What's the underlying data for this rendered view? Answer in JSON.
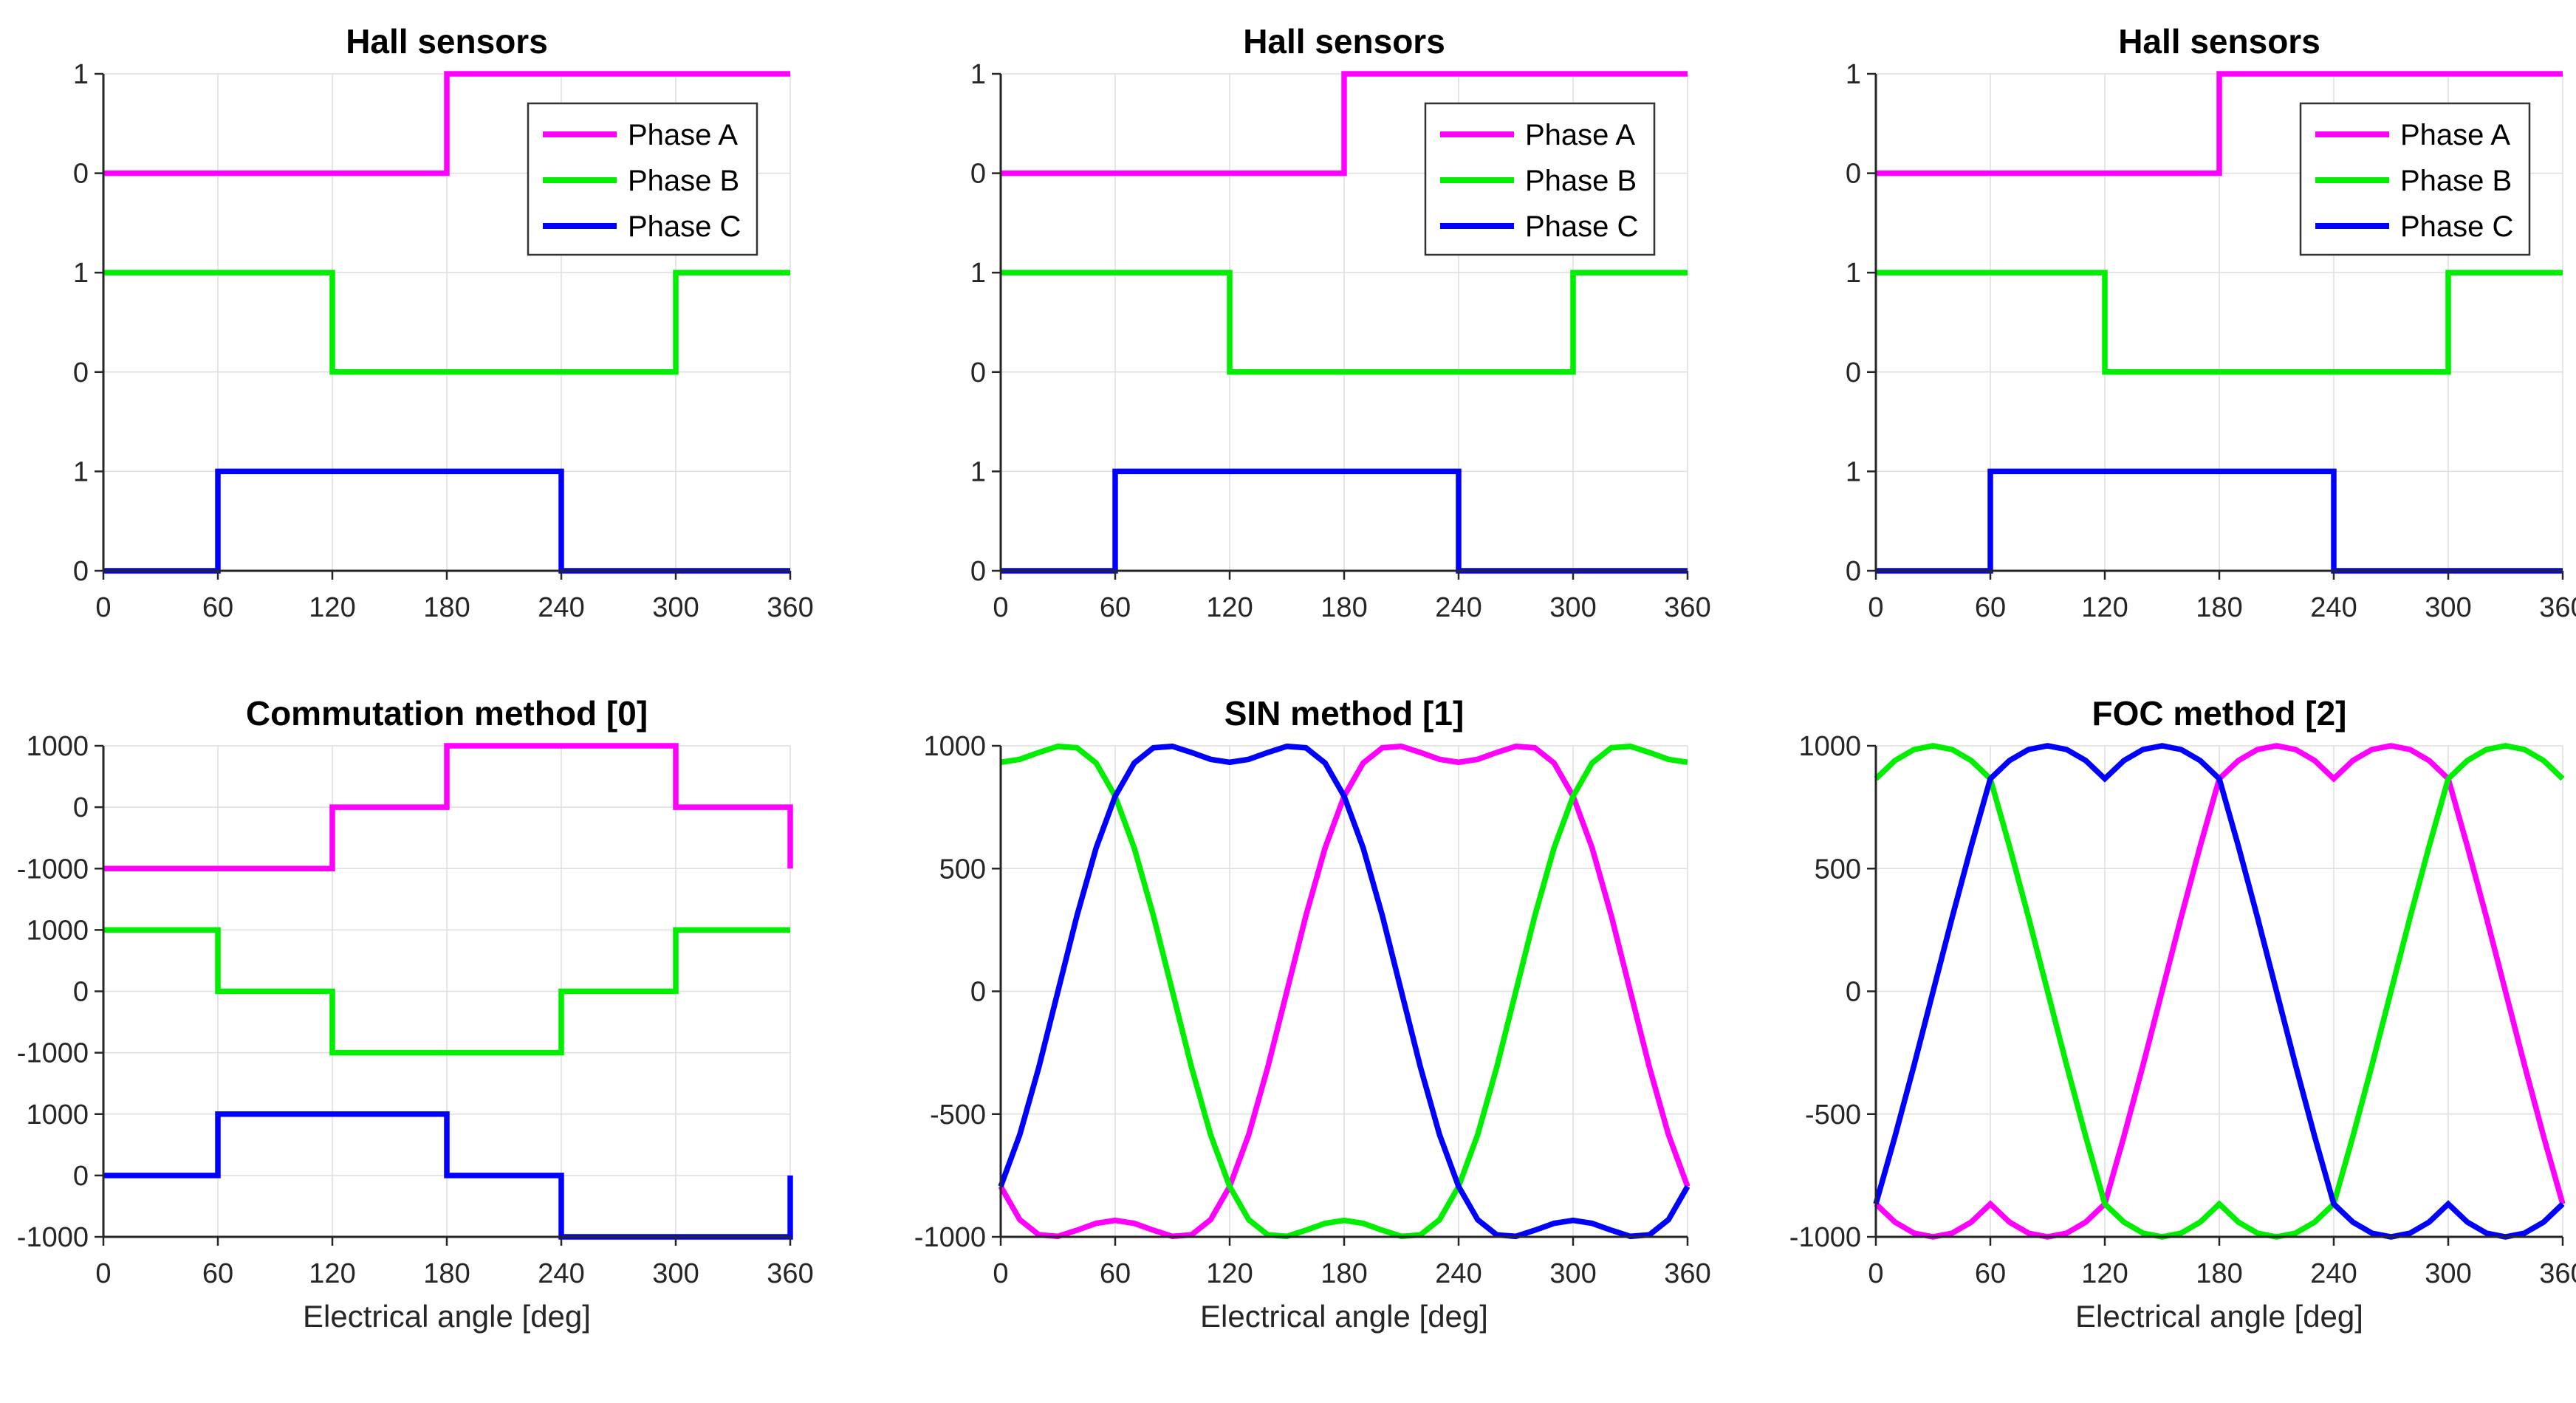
{
  "colors": {
    "phase_a": "#ff00ff",
    "phase_b": "#00ee00",
    "phase_c": "#0000ff",
    "axis": "#262626",
    "grid": "#dedede",
    "label": "#262626",
    "title": "#000000",
    "legend_border": "#333333",
    "background": "#ffffff"
  },
  "legend": {
    "items": [
      {
        "label": "Phase A",
        "color": "phase_a"
      },
      {
        "label": "Phase B",
        "color": "phase_b"
      },
      {
        "label": "Phase C",
        "color": "phase_c"
      }
    ]
  },
  "x_axis": {
    "label": "Electrical angle [deg]",
    "range": [
      0,
      360
    ],
    "tick_values": [
      0,
      60,
      120,
      180,
      240,
      300,
      360
    ],
    "tick_labels": [
      "0",
      "60",
      "120",
      "180",
      "240",
      "300",
      "360"
    ]
  },
  "hall_series": [
    {
      "name": "Phase A",
      "color": "phase_a",
      "y_offset": 4,
      "y_scale": 1,
      "points": [
        [
          0,
          0
        ],
        [
          180,
          0
        ],
        [
          180,
          1
        ],
        [
          360,
          1
        ]
      ]
    },
    {
      "name": "Phase B",
      "color": "phase_b",
      "y_offset": 2,
      "y_scale": 1,
      "points": [
        [
          0,
          1
        ],
        [
          120,
          1
        ],
        [
          120,
          0
        ],
        [
          300,
          0
        ],
        [
          300,
          1
        ],
        [
          360,
          1
        ]
      ]
    },
    {
      "name": "Phase C",
      "color": "phase_c",
      "y_offset": 0,
      "y_scale": 1,
      "points": [
        [
          0,
          0
        ],
        [
          60,
          0
        ],
        [
          60,
          1
        ],
        [
          240,
          1
        ],
        [
          240,
          0
        ],
        [
          360,
          0
        ]
      ]
    }
  ],
  "chart_data": [
    {
      "id": "hall-1",
      "type": "line",
      "title": "Hall sensors",
      "show_legend": true,
      "show_xlabel": false,
      "y_range": [
        0,
        5
      ],
      "y_ticks": [
        {
          "v": 5,
          "label": "1"
        },
        {
          "v": 4,
          "label": "0"
        },
        {
          "v": 3,
          "label": "1"
        },
        {
          "v": 2,
          "label": "0"
        },
        {
          "v": 1,
          "label": "1"
        },
        {
          "v": 0,
          "label": "0"
        }
      ],
      "series_ref": "hall_series"
    },
    {
      "id": "hall-2",
      "type": "line",
      "title": "Hall sensors",
      "show_legend": true,
      "show_xlabel": false,
      "y_range": [
        0,
        5
      ],
      "y_ticks": [
        {
          "v": 5,
          "label": "1"
        },
        {
          "v": 4,
          "label": "0"
        },
        {
          "v": 3,
          "label": "1"
        },
        {
          "v": 2,
          "label": "0"
        },
        {
          "v": 1,
          "label": "1"
        },
        {
          "v": 0,
          "label": "0"
        }
      ],
      "series_ref": "hall_series"
    },
    {
      "id": "hall-3",
      "type": "line",
      "title": "Hall sensors",
      "show_legend": true,
      "show_xlabel": false,
      "y_range": [
        0,
        5
      ],
      "y_ticks": [
        {
          "v": 5,
          "label": "1"
        },
        {
          "v": 4,
          "label": "0"
        },
        {
          "v": 3,
          "label": "1"
        },
        {
          "v": 2,
          "label": "0"
        },
        {
          "v": 1,
          "label": "1"
        },
        {
          "v": 0,
          "label": "0"
        }
      ],
      "series_ref": "hall_series"
    },
    {
      "id": "commutation",
      "type": "line",
      "title": "Commutation method [0]",
      "show_legend": false,
      "show_xlabel": true,
      "y_range": [
        0,
        8
      ],
      "y_ticks": [
        {
          "v": 8,
          "label": "1000"
        },
        {
          "v": 7,
          "label": "0"
        },
        {
          "v": 6,
          "label": "-1000"
        },
        {
          "v": 5,
          "label": "1000"
        },
        {
          "v": 4,
          "label": "0"
        },
        {
          "v": 3,
          "label": "-1000"
        },
        {
          "v": 2,
          "label": "1000"
        },
        {
          "v": 1,
          "label": "0"
        },
        {
          "v": 0,
          "label": "-1000"
        }
      ],
      "series": [
        {
          "name": "Phase A",
          "color": "phase_a",
          "y_offset": 7,
          "y_scale": 0.001,
          "points": [
            [
              0,
              -1000
            ],
            [
              120,
              -1000
            ],
            [
              120,
              0
            ],
            [
              180,
              0
            ],
            [
              180,
              1000
            ],
            [
              300,
              1000
            ],
            [
              300,
              0
            ],
            [
              360,
              0
            ],
            [
              360,
              -1000
            ]
          ]
        },
        {
          "name": "Phase B",
          "color": "phase_b",
          "y_offset": 4,
          "y_scale": 0.001,
          "points": [
            [
              0,
              1000
            ],
            [
              60,
              1000
            ],
            [
              60,
              0
            ],
            [
              120,
              0
            ],
            [
              120,
              -1000
            ],
            [
              240,
              -1000
            ],
            [
              240,
              0
            ],
            [
              300,
              0
            ],
            [
              300,
              1000
            ],
            [
              360,
              1000
            ]
          ]
        },
        {
          "name": "Phase C",
          "color": "phase_c",
          "y_offset": 1,
          "y_scale": 0.001,
          "points": [
            [
              0,
              0
            ],
            [
              60,
              0
            ],
            [
              60,
              1000
            ],
            [
              180,
              1000
            ],
            [
              180,
              0
            ],
            [
              240,
              0
            ],
            [
              240,
              -1000
            ],
            [
              360,
              -1000
            ],
            [
              360,
              0
            ]
          ]
        }
      ]
    },
    {
      "id": "sin-method",
      "type": "line",
      "title": "SIN method [1]",
      "show_legend": false,
      "show_xlabel": true,
      "y_range": [
        -1000,
        1000
      ],
      "y_ticks": [
        {
          "v": 1000,
          "label": "1000"
        },
        {
          "v": 500,
          "label": "500"
        },
        {
          "v": 0,
          "label": "0"
        },
        {
          "v": -500,
          "label": "-500"
        },
        {
          "v": -1000,
          "label": "-1000"
        }
      ],
      "series": [
        {
          "name": "Phase A",
          "color": "phase_a",
          "y_offset": 0,
          "y_scale": 1,
          "x_start": 0,
          "x_step": 10,
          "values": [
            -795,
            -930,
            -992,
            -998,
            -973,
            -945,
            -933,
            -945,
            -973,
            -998,
            -992,
            -930,
            -795,
            -584,
            -309,
            0,
            309,
            584,
            795,
            930,
            992,
            998,
            973,
            945,
            933,
            945,
            973,
            998,
            992,
            930,
            795,
            584,
            309,
            0,
            -309,
            -584,
            -795
          ]
        },
        {
          "name": "Phase B",
          "color": "phase_b",
          "y_offset": 0,
          "y_scale": 1,
          "x_start": 0,
          "x_step": 10,
          "values": [
            933,
            945,
            973,
            998,
            992,
            930,
            795,
            584,
            309,
            0,
            -309,
            -584,
            -795,
            -930,
            -992,
            -998,
            -973,
            -945,
            -933,
            -945,
            -973,
            -998,
            -992,
            -930,
            -795,
            -584,
            -309,
            0,
            309,
            584,
            795,
            930,
            992,
            998,
            973,
            945,
            933
          ]
        },
        {
          "name": "Phase C",
          "color": "phase_c",
          "y_offset": 0,
          "y_scale": 1,
          "x_start": 0,
          "x_step": 10,
          "values": [
            -795,
            -584,
            -309,
            0,
            309,
            584,
            795,
            930,
            992,
            998,
            973,
            945,
            933,
            945,
            973,
            998,
            992,
            930,
            795,
            584,
            309,
            0,
            -309,
            -584,
            -795,
            -930,
            -992,
            -998,
            -973,
            -945,
            -933,
            -945,
            -973,
            -998,
            -992,
            -930,
            -795
          ]
        }
      ]
    },
    {
      "id": "foc-method",
      "type": "line",
      "title": "FOC method [2]",
      "show_legend": false,
      "show_xlabel": true,
      "y_range": [
        -1000,
        1000
      ],
      "y_ticks": [
        {
          "v": 1000,
          "label": "1000"
        },
        {
          "v": 500,
          "label": "500"
        },
        {
          "v": 0,
          "label": "0"
        },
        {
          "v": -500,
          "label": "-500"
        },
        {
          "v": -1000,
          "label": "-1000"
        }
      ],
      "series": [
        {
          "name": "Phase A",
          "color": "phase_a",
          "y_offset": 0,
          "y_scale": 1,
          "x_start": 0,
          "x_step": 10,
          "values": [
            -866,
            -940,
            -985,
            -1000,
            -985,
            -940,
            -866,
            -940,
            -985,
            -1000,
            -985,
            -940,
            -866,
            -592,
            -301,
            0,
            301,
            592,
            866,
            940,
            985,
            1000,
            985,
            940,
            866,
            940,
            985,
            1000,
            985,
            940,
            866,
            592,
            301,
            0,
            -301,
            -592,
            -866
          ]
        },
        {
          "name": "Phase B",
          "color": "phase_b",
          "y_offset": 0,
          "y_scale": 1,
          "x_start": 0,
          "x_step": 10,
          "values": [
            866,
            940,
            985,
            1000,
            985,
            940,
            866,
            592,
            301,
            0,
            -301,
            -592,
            -866,
            -940,
            -985,
            -1000,
            -985,
            -940,
            -866,
            -940,
            -985,
            -1000,
            -985,
            -940,
            -866,
            -592,
            -301,
            0,
            301,
            592,
            866,
            940,
            985,
            1000,
            985,
            940,
            866
          ]
        },
        {
          "name": "Phase C",
          "color": "phase_c",
          "y_offset": 0,
          "y_scale": 1,
          "x_start": 0,
          "x_step": 10,
          "values": [
            -866,
            -592,
            -301,
            0,
            301,
            592,
            866,
            940,
            985,
            1000,
            985,
            940,
            866,
            940,
            985,
            1000,
            985,
            940,
            866,
            592,
            301,
            0,
            -301,
            -592,
            -866,
            -940,
            -985,
            -1000,
            -985,
            -940,
            -866,
            -940,
            -985,
            -1000,
            -985,
            -940,
            -866
          ]
        }
      ]
    }
  ]
}
